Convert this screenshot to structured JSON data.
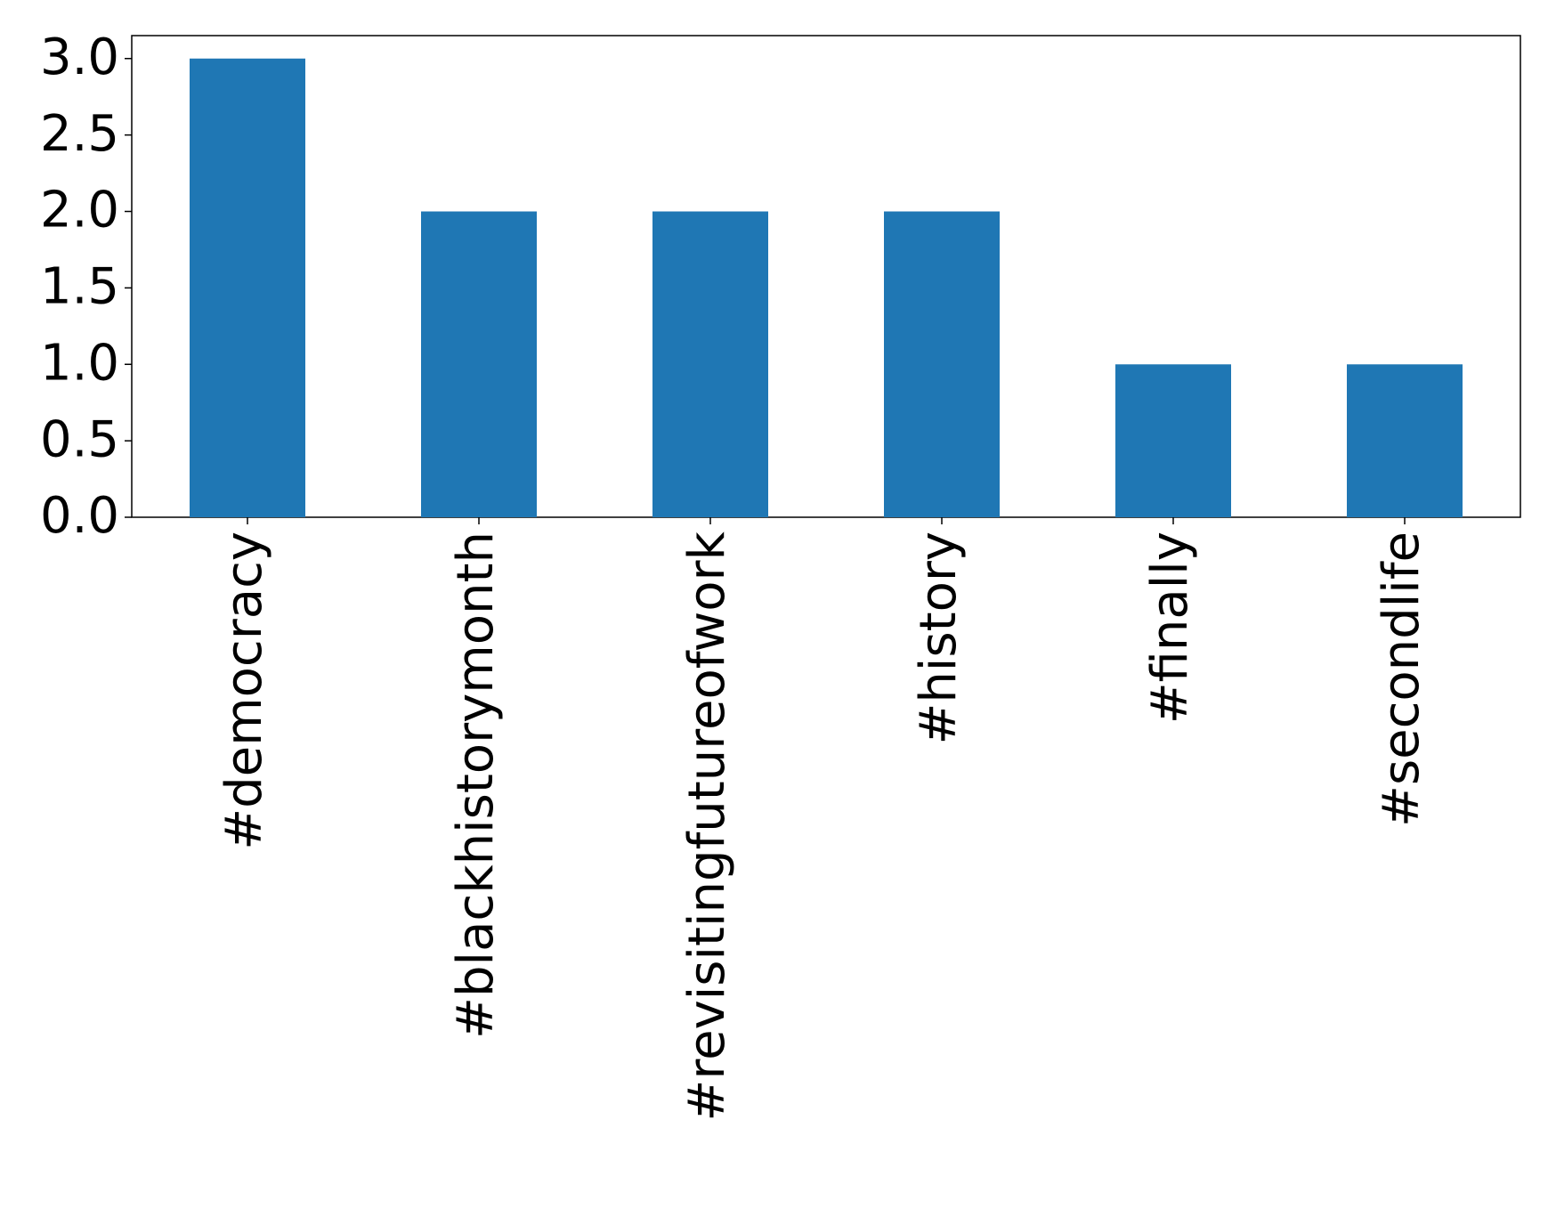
{
  "chart_data": {
    "type": "bar",
    "categories": [
      "#democracy",
      "#blackhistorymonth",
      "#revisitingfutureofwork",
      "#history",
      "#finally",
      "#secondlife"
    ],
    "values": [
      3,
      2,
      2,
      2,
      1,
      1
    ],
    "color": "#1f77b4",
    "ylim": [
      0,
      3.15
    ],
    "yticks": [
      {
        "value": 0,
        "label": "0.0"
      },
      0.5,
      {
        "value": 1,
        "label": "1.0"
      },
      1.5,
      {
        "value": 2,
        "label": "2.0"
      },
      2.5,
      {
        "value": 3,
        "label": "3.0"
      }
    ],
    "grid": false
  }
}
